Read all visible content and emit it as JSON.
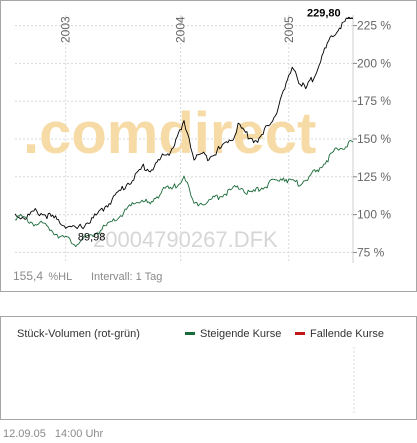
{
  "watermark": {
    "brand": ".comdirect",
    "code": "20004790267.DFK",
    "brand_color": "#f7dba6",
    "code_color": "#d6d6d6"
  },
  "price_footer": {
    "value": "155,4",
    "unit": "%HL",
    "interval": "Intervall: 1 Tag"
  },
  "last_label": "229,80",
  "low_label": "89,98",
  "volume": {
    "title": "Stück-Volumen (rot-grün)",
    "legend": [
      {
        "label": "Steigende Kurse",
        "color": "#1b6b3a"
      },
      {
        "label": "Fallende Kurse",
        "color": "#c01818"
      }
    ]
  },
  "footer": {
    "date": "12.09.05",
    "time": "14:00 Uhr"
  },
  "chart_data": {
    "type": "line",
    "x_axis": {
      "ticks": [
        "2003",
        "2004",
        "2005"
      ],
      "tick_x_frac": [
        0.15,
        0.49,
        0.81
      ]
    },
    "y_axis": {
      "range": [
        68,
        232
      ],
      "ticks": [
        75,
        100,
        125,
        150,
        175,
        200,
        225
      ],
      "tick_labels": [
        "75 %",
        "100 %",
        "125 %",
        "150 %",
        "175 %",
        "200 %",
        "225 %"
      ],
      "position": "right"
    },
    "grid": true,
    "series": [
      {
        "color": "#000000",
        "points": [
          [
            0.0,
            100
          ],
          [
            0.03,
            98
          ],
          [
            0.06,
            102
          ],
          [
            0.09,
            100
          ],
          [
            0.12,
            97
          ],
          [
            0.15,
            93
          ],
          [
            0.18,
            90
          ],
          [
            0.21,
            94
          ],
          [
            0.24,
            99
          ],
          [
            0.27,
            106
          ],
          [
            0.3,
            113
          ],
          [
            0.33,
            120
          ],
          [
            0.36,
            126
          ],
          [
            0.38,
            132
          ],
          [
            0.4,
            129
          ],
          [
            0.42,
            134
          ],
          [
            0.44,
            139
          ],
          [
            0.46,
            142
          ],
          [
            0.48,
            150
          ],
          [
            0.5,
            160
          ],
          [
            0.51,
            156
          ],
          [
            0.52,
            145
          ],
          [
            0.53,
            137
          ],
          [
            0.55,
            140
          ],
          [
            0.57,
            138
          ],
          [
            0.59,
            141
          ],
          [
            0.61,
            144
          ],
          [
            0.63,
            149
          ],
          [
            0.65,
            152
          ],
          [
            0.66,
            160
          ],
          [
            0.67,
            157
          ],
          [
            0.69,
            152
          ],
          [
            0.71,
            149
          ],
          [
            0.73,
            151
          ],
          [
            0.75,
            160
          ],
          [
            0.77,
            166
          ],
          [
            0.78,
            172
          ],
          [
            0.79,
            178
          ],
          [
            0.81,
            190
          ],
          [
            0.82,
            198
          ],
          [
            0.83,
            195
          ],
          [
            0.84,
            188
          ],
          [
            0.86,
            183
          ],
          [
            0.88,
            190
          ],
          [
            0.9,
            200
          ],
          [
            0.92,
            210
          ],
          [
            0.94,
            218
          ],
          [
            0.96,
            224
          ],
          [
            0.98,
            228
          ],
          [
            1.0,
            229.8
          ]
        ]
      },
      {
        "color": "#1b6b3a",
        "points": [
          [
            0.0,
            99
          ],
          [
            0.03,
            97
          ],
          [
            0.06,
            94
          ],
          [
            0.09,
            93
          ],
          [
            0.12,
            88
          ],
          [
            0.15,
            84
          ],
          [
            0.18,
            81
          ],
          [
            0.21,
            84
          ],
          [
            0.24,
            88
          ],
          [
            0.27,
            92
          ],
          [
            0.3,
            97
          ],
          [
            0.33,
            103
          ],
          [
            0.36,
            108
          ],
          [
            0.38,
            110
          ],
          [
            0.4,
            106
          ],
          [
            0.42,
            112
          ],
          [
            0.44,
            118
          ],
          [
            0.46,
            116
          ],
          [
            0.48,
            120
          ],
          [
            0.5,
            126
          ],
          [
            0.51,
            120
          ],
          [
            0.52,
            112
          ],
          [
            0.53,
            106
          ],
          [
            0.55,
            109
          ],
          [
            0.57,
            108
          ],
          [
            0.59,
            111
          ],
          [
            0.61,
            113
          ],
          [
            0.63,
            115
          ],
          [
            0.65,
            117
          ],
          [
            0.67,
            118
          ],
          [
            0.69,
            114
          ],
          [
            0.71,
            115
          ],
          [
            0.73,
            118
          ],
          [
            0.75,
            120
          ],
          [
            0.77,
            122
          ],
          [
            0.79,
            125
          ],
          [
            0.81,
            123
          ],
          [
            0.83,
            120
          ],
          [
            0.85,
            122
          ],
          [
            0.87,
            125
          ],
          [
            0.89,
            128
          ],
          [
            0.91,
            133
          ],
          [
            0.93,
            138
          ],
          [
            0.95,
            142
          ],
          [
            0.97,
            145
          ],
          [
            1.0,
            148
          ]
        ]
      }
    ]
  }
}
